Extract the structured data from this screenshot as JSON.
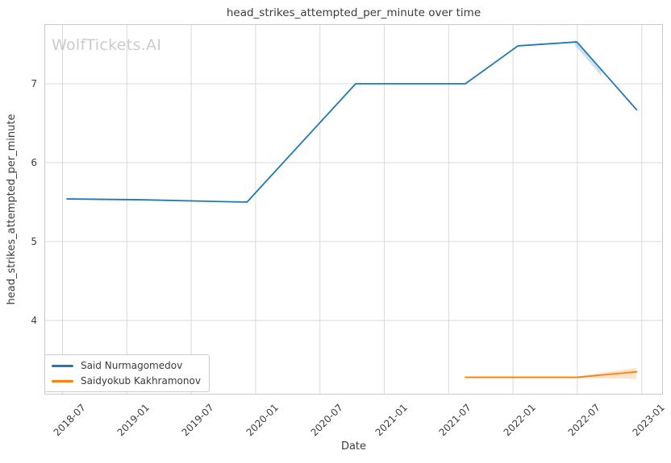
{
  "header": {
    "title": "head_strikes_attempted_per_minute over time",
    "watermark": "WolfTickets.AI"
  },
  "chart_data": {
    "type": "line",
    "title": "head_strikes_attempted_per_minute over time",
    "xlabel": "Date",
    "ylabel": "head_strikes_attempted_per_minute",
    "grid": true,
    "legend_position": "lower-left",
    "x_tick_labels": [
      "2018-07",
      "2019-01",
      "2019-07",
      "2020-01",
      "2020-07",
      "2021-01",
      "2021-07",
      "2022-01",
      "2022-07",
      "2023-01"
    ],
    "y_tick_labels": [
      "4",
      "5",
      "6",
      "7"
    ],
    "ylim": [
      3.06,
      7.76
    ],
    "x_range_dates": [
      "2018-05-11",
      "2023-03-02"
    ],
    "series": [
      {
        "name": "Said Nurmagomedov",
        "color": "#1f77b4",
        "points": [
          {
            "date": "2018-07-14",
            "value": 5.54
          },
          {
            "date": "2019-02-09",
            "value": 5.53
          },
          {
            "date": "2019-12-07",
            "value": 5.5
          },
          {
            "date": "2020-10-11",
            "value": 7.0
          },
          {
            "date": "2021-08-18",
            "value": 7.0
          },
          {
            "date": "2022-01-15",
            "value": 7.48
          },
          {
            "date": "2022-06-30",
            "value": 7.53
          },
          {
            "date": "2022-12-17",
            "value": 6.67
          }
        ],
        "band": [
          {
            "date": "2022-06-24",
            "lo": 7.49,
            "hi": 7.56
          },
          {
            "date": "2022-09-08",
            "lo": 7.1,
            "hi": 7.18
          }
        ]
      },
      {
        "name": "Saidyokub Kakhramonov",
        "color": "#ff7f0e",
        "points": [
          {
            "date": "2021-08-18",
            "value": 3.28
          },
          {
            "date": "2022-06-30",
            "value": 3.28
          },
          {
            "date": "2022-12-17",
            "value": 3.35
          }
        ],
        "band": [
          {
            "date": "2022-06-30",
            "lo": 3.27,
            "hi": 3.29
          },
          {
            "date": "2022-12-17",
            "lo": 3.26,
            "hi": 3.4
          }
        ]
      }
    ]
  }
}
